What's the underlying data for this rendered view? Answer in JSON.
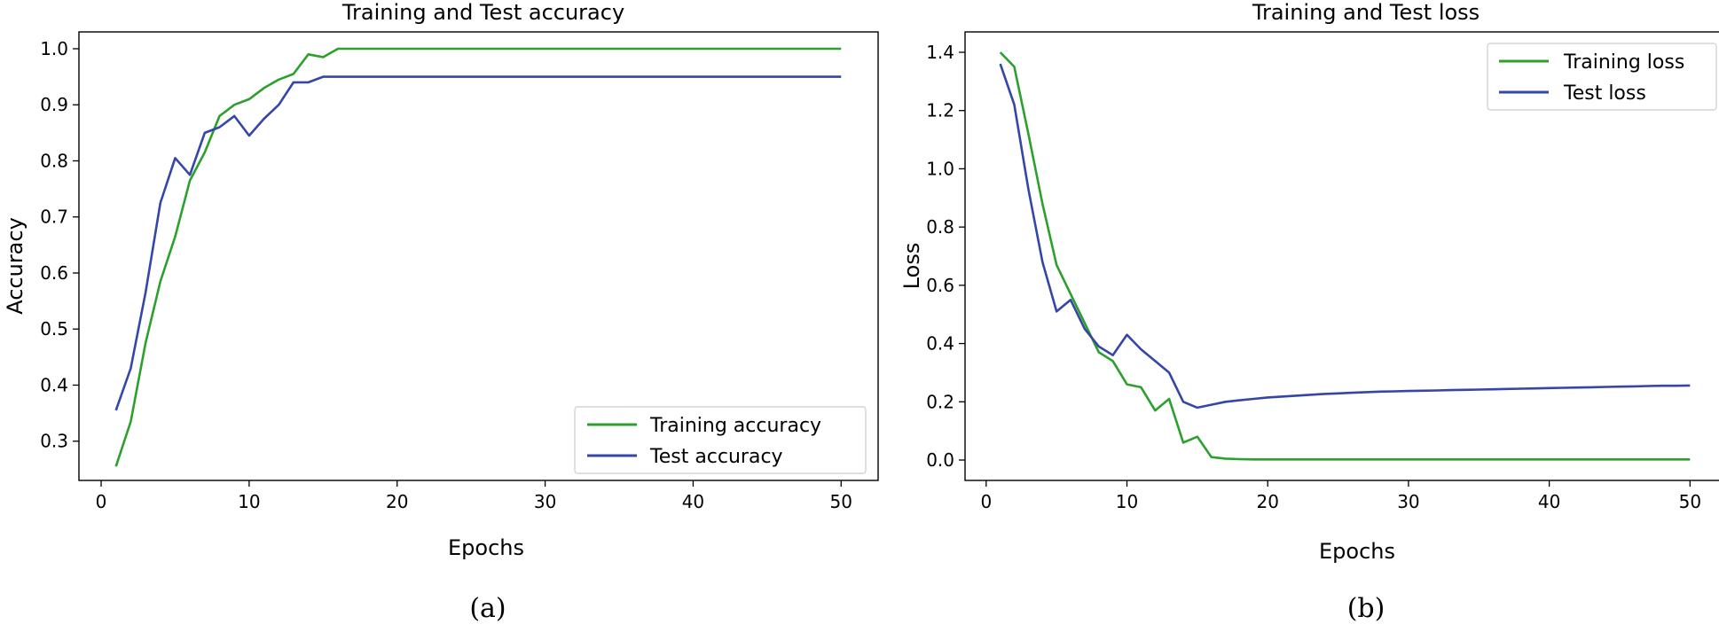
{
  "captions": [
    "(a)",
    "(b)"
  ],
  "chart_data": [
    {
      "type": "line",
      "title": "Training and Test accuracy",
      "xlabel": "Epochs",
      "ylabel": "Accuracy",
      "xlim": [
        -1.5,
        52.5
      ],
      "ylim": [
        0.23,
        1.03
      ],
      "xticks": [
        0,
        10,
        20,
        30,
        40,
        50
      ],
      "xtick_labels": [
        "0",
        "10",
        "20",
        "30",
        "40",
        "50"
      ],
      "yticks": [
        0.3,
        0.4,
        0.5,
        0.6,
        0.7,
        0.8,
        0.9,
        1.0
      ],
      "ytick_labels": [
        "0.3",
        "0.4",
        "0.5",
        "0.6",
        "0.7",
        "0.8",
        "0.9",
        "1.0"
      ],
      "legend_position": "lower-right",
      "grid": false,
      "series": [
        {
          "name": "Training accuracy",
          "color": "#2ca02c",
          "x": [
            1,
            2,
            3,
            4,
            5,
            6,
            7,
            8,
            9,
            10,
            11,
            12,
            13,
            14,
            15,
            16,
            17,
            18,
            19,
            20,
            21,
            22,
            23,
            24,
            25,
            26,
            27,
            28,
            29,
            30,
            31,
            32,
            33,
            34,
            35,
            36,
            37,
            38,
            39,
            40,
            41,
            42,
            43,
            44,
            45,
            46,
            47,
            48,
            49,
            50
          ],
          "values": [
            0.255,
            0.335,
            0.475,
            0.585,
            0.665,
            0.765,
            0.815,
            0.88,
            0.9,
            0.91,
            0.93,
            0.945,
            0.955,
            0.99,
            0.985,
            1.0,
            1.0,
            1.0,
            1.0,
            1.0,
            1.0,
            1.0,
            1.0,
            1.0,
            1.0,
            1.0,
            1.0,
            1.0,
            1.0,
            1.0,
            1.0,
            1.0,
            1.0,
            1.0,
            1.0,
            1.0,
            1.0,
            1.0,
            1.0,
            1.0,
            1.0,
            1.0,
            1.0,
            1.0,
            1.0,
            1.0,
            1.0,
            1.0,
            1.0,
            1.0
          ]
        },
        {
          "name": "Test accuracy",
          "color": "#3446a8",
          "x": [
            1,
            2,
            3,
            4,
            5,
            6,
            7,
            8,
            9,
            10,
            11,
            12,
            13,
            14,
            15,
            16,
            17,
            18,
            19,
            20,
            21,
            22,
            23,
            24,
            25,
            26,
            27,
            28,
            29,
            30,
            31,
            32,
            33,
            34,
            35,
            36,
            37,
            38,
            39,
            40,
            41,
            42,
            43,
            44,
            45,
            46,
            47,
            48,
            49,
            50
          ],
          "values": [
            0.355,
            0.43,
            0.565,
            0.725,
            0.805,
            0.775,
            0.85,
            0.86,
            0.88,
            0.845,
            0.875,
            0.9,
            0.94,
            0.94,
            0.95,
            0.95,
            0.95,
            0.95,
            0.95,
            0.95,
            0.95,
            0.95,
            0.95,
            0.95,
            0.95,
            0.95,
            0.95,
            0.95,
            0.95,
            0.95,
            0.95,
            0.95,
            0.95,
            0.95,
            0.95,
            0.95,
            0.95,
            0.95,
            0.95,
            0.95,
            0.95,
            0.95,
            0.95,
            0.95,
            0.95,
            0.95,
            0.95,
            0.95,
            0.95,
            0.95
          ]
        }
      ]
    },
    {
      "type": "line",
      "title": "Training and Test loss",
      "xlabel": "Epochs",
      "ylabel": "Loss",
      "xlim": [
        -1.5,
        52.5
      ],
      "ylim": [
        -0.07,
        1.47
      ],
      "xticks": [
        0,
        10,
        20,
        30,
        40,
        50
      ],
      "xtick_labels": [
        "0",
        "10",
        "20",
        "30",
        "40",
        "50"
      ],
      "yticks": [
        0.0,
        0.2,
        0.4,
        0.6,
        0.8,
        1.0,
        1.2,
        1.4
      ],
      "ytick_labels": [
        "0.0",
        "0.2",
        "0.4",
        "0.6",
        "0.8",
        "1.0",
        "1.2",
        "1.4"
      ],
      "legend_position": "upper-right",
      "grid": false,
      "series": [
        {
          "name": "Training loss",
          "color": "#2ca02c",
          "x": [
            1,
            2,
            3,
            4,
            5,
            6,
            7,
            8,
            9,
            10,
            11,
            12,
            13,
            14,
            15,
            16,
            17,
            18,
            19,
            20,
            21,
            22,
            23,
            24,
            25,
            26,
            27,
            28,
            29,
            30,
            31,
            32,
            33,
            34,
            35,
            36,
            37,
            38,
            39,
            40,
            41,
            42,
            43,
            44,
            45,
            46,
            47,
            48,
            49,
            50
          ],
          "values": [
            1.4,
            1.35,
            1.12,
            0.88,
            0.67,
            0.57,
            0.47,
            0.37,
            0.34,
            0.26,
            0.25,
            0.17,
            0.21,
            0.06,
            0.08,
            0.01,
            0.005,
            0.003,
            0.002,
            0.002,
            0.002,
            0.002,
            0.002,
            0.002,
            0.002,
            0.002,
            0.002,
            0.002,
            0.002,
            0.002,
            0.002,
            0.002,
            0.002,
            0.002,
            0.002,
            0.002,
            0.002,
            0.002,
            0.002,
            0.002,
            0.002,
            0.002,
            0.002,
            0.002,
            0.002,
            0.002,
            0.002,
            0.002,
            0.002,
            0.002
          ]
        },
        {
          "name": "Test loss",
          "color": "#3446a8",
          "x": [
            1,
            2,
            3,
            4,
            5,
            6,
            7,
            8,
            9,
            10,
            11,
            12,
            13,
            14,
            15,
            16,
            17,
            18,
            19,
            20,
            21,
            22,
            23,
            24,
            25,
            26,
            27,
            28,
            29,
            30,
            31,
            32,
            33,
            34,
            35,
            36,
            37,
            38,
            39,
            40,
            41,
            42,
            43,
            44,
            45,
            46,
            47,
            48,
            49,
            50
          ],
          "values": [
            1.36,
            1.22,
            0.93,
            0.68,
            0.51,
            0.55,
            0.45,
            0.39,
            0.36,
            0.43,
            0.38,
            0.34,
            0.3,
            0.2,
            0.18,
            0.19,
            0.2,
            0.205,
            0.21,
            0.215,
            0.218,
            0.221,
            0.224,
            0.227,
            0.229,
            0.231,
            0.233,
            0.235,
            0.236,
            0.237,
            0.238,
            0.239,
            0.24,
            0.241,
            0.242,
            0.243,
            0.244,
            0.245,
            0.246,
            0.247,
            0.248,
            0.249,
            0.25,
            0.251,
            0.252,
            0.253,
            0.254,
            0.255,
            0.255,
            0.256
          ]
        }
      ]
    }
  ]
}
